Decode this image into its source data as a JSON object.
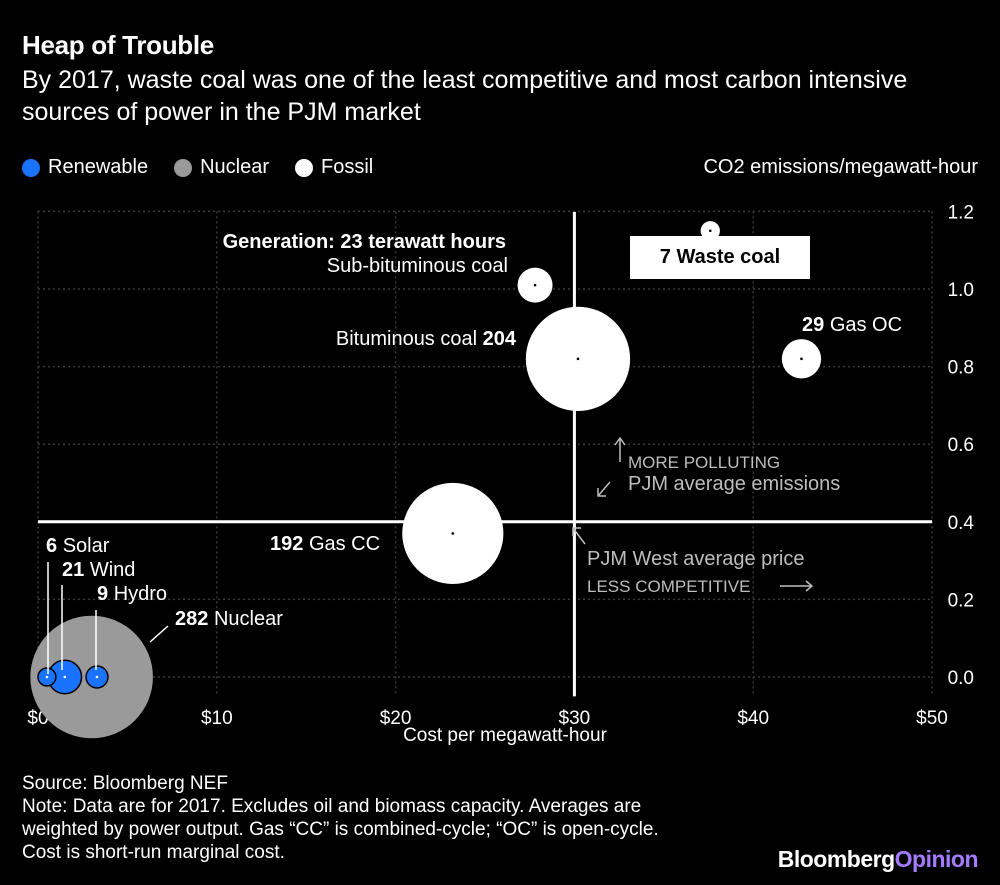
{
  "header": {
    "title": "Heap of Trouble",
    "subtitle": "By 2017, waste coal was one of the least competitive and most carbon intensive sources of power in the PJM market"
  },
  "legend": [
    {
      "label": "Renewable",
      "color": "#1a73ff"
    },
    {
      "label": "Nuclear",
      "color": "#9a9a9a"
    },
    {
      "label": "Fossil",
      "color": "#ffffff"
    }
  ],
  "chart_data": {
    "type": "scatter",
    "title": "Heap of Trouble",
    "xlabel": "Cost per megawatt-hour",
    "ylabel": "CO2 emissions/megawatt-hour",
    "xlim": [
      0,
      50
    ],
    "ylim": [
      -0.05,
      1.2
    ],
    "x_ticks": [
      0,
      10,
      20,
      30,
      40,
      50
    ],
    "x_tick_labels": [
      "$0",
      "$10",
      "$20",
      "$30",
      "$40",
      "$50"
    ],
    "y_ticks": [
      0.0,
      0.2,
      0.4,
      0.6,
      0.8,
      1.0,
      1.2
    ],
    "y_tick_labels": [
      "0.0",
      "0.2",
      "0.4",
      "0.6",
      "0.8",
      "1.0",
      "1.2"
    ],
    "bubble_size_label": "Generation: 23 terawatt hours",
    "points": [
      {
        "name": "Solar",
        "generation": 6,
        "cost": 0.5,
        "emissions": 0.0,
        "category": "Renewable"
      },
      {
        "name": "Wind",
        "generation": 21,
        "cost": 1.5,
        "emissions": 0.0,
        "category": "Renewable"
      },
      {
        "name": "Hydro",
        "generation": 9,
        "cost": 3.3,
        "emissions": 0.0,
        "category": "Renewable"
      },
      {
        "name": "Nuclear",
        "generation": 282,
        "cost": 3.0,
        "emissions": 0.0,
        "category": "Nuclear"
      },
      {
        "name": "Gas CC",
        "generation": 192,
        "cost": 23.2,
        "emissions": 0.37,
        "category": "Fossil"
      },
      {
        "name": "Bituminous coal",
        "generation": 204,
        "cost": 30.2,
        "emissions": 0.82,
        "category": "Fossil"
      },
      {
        "name": "Sub-bituminous coal",
        "generation": 23,
        "cost": 27.8,
        "emissions": 1.01,
        "category": "Fossil"
      },
      {
        "name": "Gas OC",
        "generation": 29,
        "cost": 42.7,
        "emissions": 0.82,
        "category": "Fossil"
      },
      {
        "name": "Waste coal",
        "generation": 7,
        "cost": 37.6,
        "emissions": 1.15,
        "category": "Fossil"
      }
    ],
    "reference_lines": {
      "avg_emissions": 0.4,
      "avg_emissions_label": "PJM average emissions",
      "avg_emissions_arrow_label": "MORE POLLUTING",
      "avg_price": 30,
      "avg_price_label": "PJM West average price",
      "avg_price_arrow_label": "LESS COMPETITIVE"
    }
  },
  "footer": {
    "source": "Source: Bloomberg NEF",
    "note_line1": "Note: Data are for 2017. Excludes oil and biomass capacity. Averages are",
    "note_line2": "weighted by power output. Gas “CC” is combined-cycle; “OC” is open-cycle.",
    "note_line3": "Cost is short-run marginal cost.",
    "brand_a": "Bloomberg",
    "brand_b": "Opinion"
  }
}
